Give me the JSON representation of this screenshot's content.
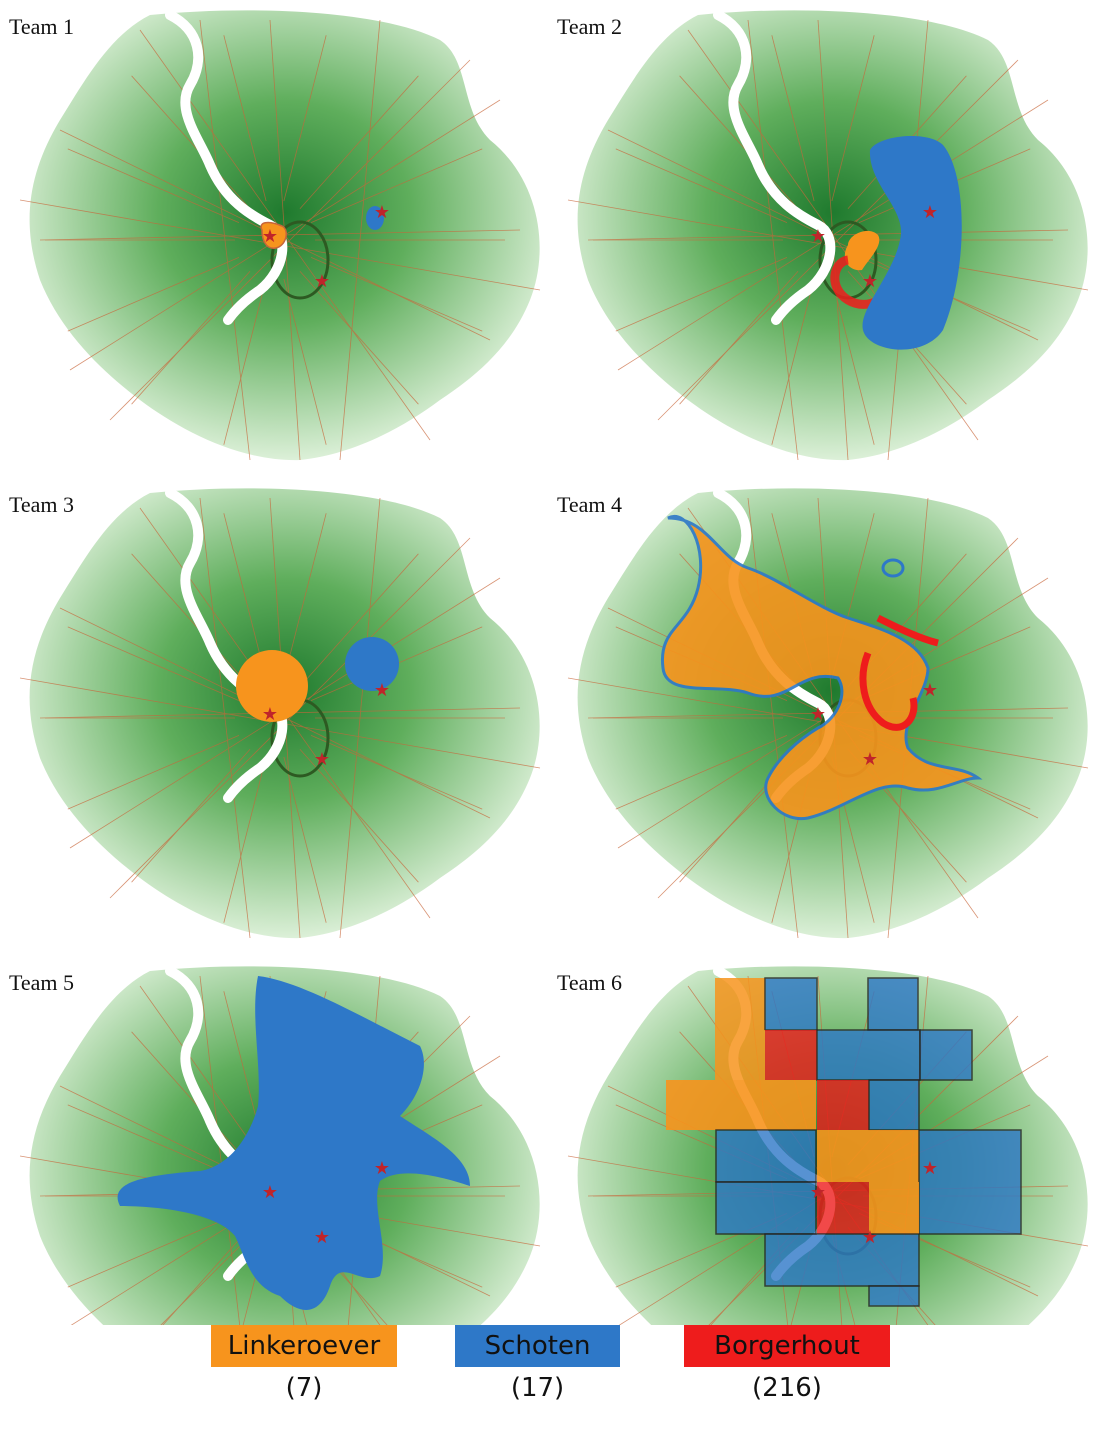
{
  "panels": [
    {
      "label": "Team 1"
    },
    {
      "label": "Team 2"
    },
    {
      "label": "Team 3"
    },
    {
      "label": "Team 4"
    },
    {
      "label": "Team 5"
    },
    {
      "label": "Team 6"
    }
  ],
  "legend": [
    {
      "label": "Linkeroever (7)",
      "color": "#f7941d"
    },
    {
      "label": "Schoten (17)",
      "color": "#2e78c8"
    },
    {
      "label": "Borgerhout (216)",
      "color": "#ee1c1c"
    }
  ],
  "colors": {
    "density_dark": "#1f7a2e",
    "density_light": "#dcf0d8",
    "road": "#c8663a",
    "river": "#ffffff",
    "star": "#c0242a",
    "linkeroever": "#f7941d",
    "schoten": "#2e78c8",
    "borgerhout": "#ee1c1c"
  }
}
